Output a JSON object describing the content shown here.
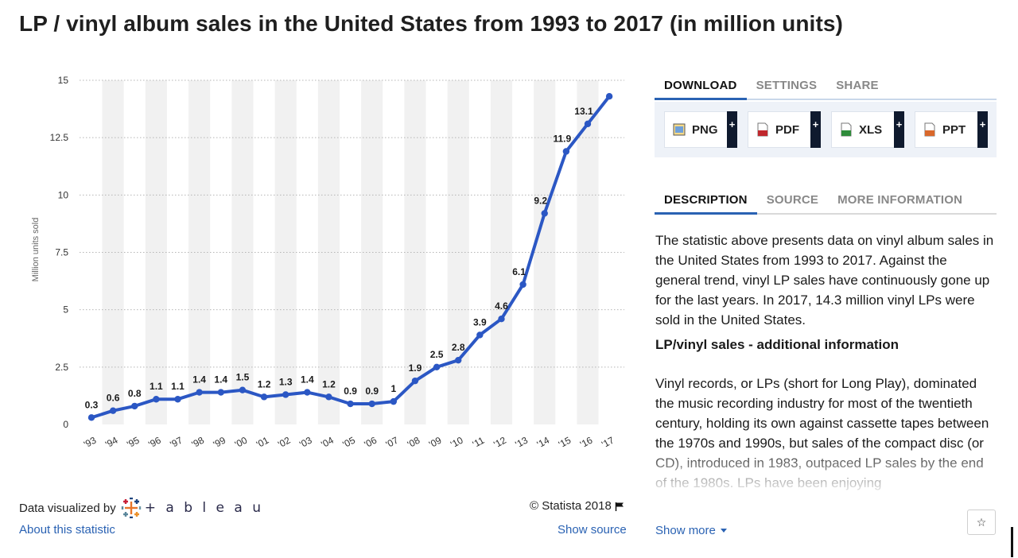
{
  "title": "LP / vinyl album sales in the United States from 1993 to 2017 (in million units)",
  "chart_data": {
    "type": "line",
    "x": [
      "'93",
      "'94",
      "'95",
      "'96",
      "'97",
      "'98",
      "'99",
      "'00",
      "'01",
      "'02",
      "'03",
      "'04",
      "'05",
      "'06",
      "'07",
      "'08",
      "'09",
      "'10",
      "'11",
      "'12",
      "'13",
      "'14",
      "'15",
      "'16",
      "'17"
    ],
    "series": [
      {
        "values": [
          0.3,
          0.6,
          0.8,
          1.1,
          1.1,
          1.4,
          1.4,
          1.5,
          1.2,
          1.3,
          1.4,
          1.2,
          0.9,
          0.9,
          1.0,
          1.9,
          2.5,
          2.8,
          3.9,
          4.6,
          6.1,
          9.2,
          11.9,
          13.1,
          14.3
        ]
      }
    ],
    "data_labels": [
      "0.3",
      "0.6",
      "0.8",
      "1.1",
      "1.1",
      "1.4",
      "1.4",
      "1.5",
      "1.2",
      "1.3",
      "1.4",
      "1.2",
      "0.9",
      "0.9",
      "1",
      "1.9",
      "2.5",
      "2.8",
      "3.9",
      "4.6",
      "6.1",
      "9.2",
      "11.9",
      "13.1",
      ""
    ],
    "ylabel": "Million units sold",
    "xlabel": "",
    "ylim": [
      0,
      15
    ],
    "yticks": [
      0,
      2.5,
      5,
      7.5,
      10,
      12.5,
      15
    ],
    "ytick_labels": [
      "0",
      "2.5",
      "5",
      "7.5",
      "10",
      "12.5",
      "15"
    ],
    "grid": true,
    "line_color": "#2b57c4"
  },
  "footer": {
    "credit_label": "Data visualized by",
    "tableau_word": "+ a b l e a u",
    "about_link": "About this statistic",
    "copyright": "© Statista 2018",
    "show_source": "Show source"
  },
  "panel": {
    "top_tabs": [
      "DOWNLOAD",
      "SETTINGS",
      "SHARE"
    ],
    "downloads": [
      {
        "label": "PNG",
        "icon": "png-file-icon",
        "color": "#3a6fb5"
      },
      {
        "label": "PDF",
        "icon": "pdf-file-icon",
        "color": "#c0282d"
      },
      {
        "label": "XLS",
        "icon": "xls-file-icon",
        "color": "#2e8b3a"
      },
      {
        "label": "PPT",
        "icon": "ppt-file-icon",
        "color": "#d9682b"
      }
    ],
    "plus": "+",
    "info_tabs": [
      "DESCRIPTION",
      "SOURCE",
      "MORE INFORMATION"
    ],
    "description_p1": "The statistic above presents data on vinyl album sales in the United States from 1993 to 2017. Against the general trend, vinyl LP sales have continuously gone up for the last years. In 2017, 14.3 million vinyl LPs were sold in the United States.",
    "description_heading": "LP/vinyl sales - additional information",
    "description_p2": "Vinyl records, or LPs (short for Long Play), dominated the music recording industry for most of the twentieth century, holding its own against cassette tapes between the 1970s and 1990s, but sales of the compact disc (or CD), introduced in 1983, outpaced LP sales by the end of the 1980s. LPs have been enjoying",
    "show_more": "Show more",
    "star": "☆"
  }
}
